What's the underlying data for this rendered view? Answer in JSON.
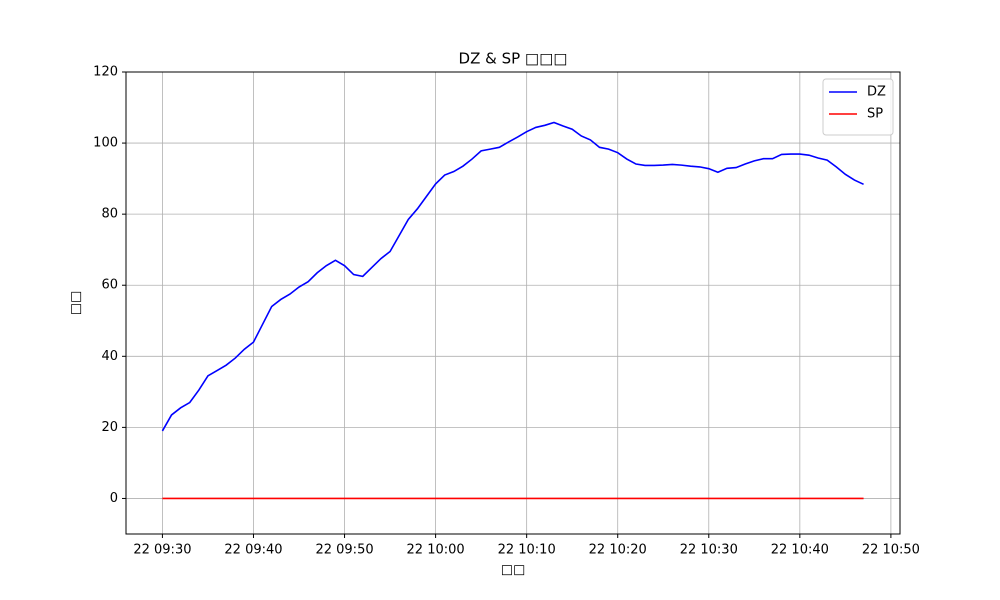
{
  "chart_data": {
    "type": "line",
    "title": "DZ & SP □□□",
    "xlabel": "□□",
    "ylabel": "□□",
    "x": [
      "22 09:30",
      "22 09:31",
      "22 09:32",
      "22 09:33",
      "22 09:34",
      "22 09:35",
      "22 09:36",
      "22 09:37",
      "22 09:38",
      "22 09:39",
      "22 09:40",
      "22 09:41",
      "22 09:42",
      "22 09:43",
      "22 09:44",
      "22 09:45",
      "22 09:46",
      "22 09:47",
      "22 09:48",
      "22 09:49",
      "22 09:50",
      "22 09:51",
      "22 09:52",
      "22 09:53",
      "22 09:54",
      "22 09:55",
      "22 09:56",
      "22 09:57",
      "22 09:58",
      "22 09:59",
      "22 10:00",
      "22 10:01",
      "22 10:02",
      "22 10:03",
      "22 10:04",
      "22 10:05",
      "22 10:06",
      "22 10:07",
      "22 10:08",
      "22 10:09",
      "22 10:10",
      "22 10:11",
      "22 10:12",
      "22 10:13",
      "22 10:14",
      "22 10:15",
      "22 10:16",
      "22 10:17",
      "22 10:18",
      "22 10:19",
      "22 10:20",
      "22 10:21",
      "22 10:22",
      "22 10:23",
      "22 10:24",
      "22 10:25",
      "22 10:26",
      "22 10:27",
      "22 10:28",
      "22 10:29",
      "22 10:30",
      "22 10:31",
      "22 10:32",
      "22 10:33",
      "22 10:34",
      "22 10:35",
      "22 10:36",
      "22 10:37",
      "22 10:38",
      "22 10:39",
      "22 10:40",
      "22 10:41",
      "22 10:42",
      "22 10:43",
      "22 10:44",
      "22 10:45",
      "22 10:46",
      "22 10:47"
    ],
    "series": [
      {
        "name": "DZ",
        "color": "#0000ff",
        "values": [
          19,
          23.5,
          25.5,
          27,
          30.5,
          34.5,
          36,
          37.5,
          39.5,
          42,
          44,
          49,
          54,
          56,
          57.5,
          59.5,
          61,
          63.5,
          65.5,
          67,
          65.5,
          63,
          62.5,
          65,
          67.5,
          69.5,
          74,
          78.5,
          81.5,
          85,
          88.5,
          91,
          92,
          93.5,
          95.5,
          97.8,
          98.3,
          98.8,
          100.3,
          101.7,
          103.2,
          104.4,
          105,
          105.8,
          104.8,
          103.9,
          102,
          100.9,
          98.8,
          98.3,
          97.3,
          95.5,
          94.1,
          93.7,
          93.7,
          93.8,
          94,
          93.8,
          93.5,
          93.3,
          92.8,
          91.8,
          92.9,
          93.1,
          94.1,
          95,
          95.6,
          95.6,
          96.8,
          96.9,
          96.9,
          96.6,
          95.8,
          95.2,
          93.3,
          91.2,
          89.6,
          88.4
        ]
      },
      {
        "name": "SP",
        "color": "#ff0000",
        "values": [
          0,
          0,
          0,
          0,
          0,
          0,
          0,
          0,
          0,
          0,
          0,
          0,
          0,
          0,
          0,
          0,
          0,
          0,
          0,
          0,
          0,
          0,
          0,
          0,
          0,
          0,
          0,
          0,
          0,
          0,
          0,
          0,
          0,
          0,
          0,
          0,
          0,
          0,
          0,
          0,
          0,
          0,
          0,
          0,
          0,
          0,
          0,
          0,
          0,
          0,
          0,
          0,
          0,
          0,
          0,
          0,
          0,
          0,
          0,
          0,
          0,
          0,
          0,
          0,
          0,
          0,
          0,
          0,
          0,
          0,
          0,
          0,
          0,
          0,
          0,
          0,
          0,
          0
        ]
      }
    ],
    "xlim": [
      "22 09:26",
      "22 10:51"
    ],
    "xticks": [
      "22 09:30",
      "22 09:40",
      "22 09:50",
      "22 10:00",
      "22 10:10",
      "22 10:20",
      "22 10:30",
      "22 10:40",
      "22 10:50"
    ],
    "ylim": [
      -10,
      120
    ],
    "yticks": [
      0,
      20,
      40,
      60,
      80,
      100,
      120
    ],
    "grid": true,
    "legend": "upper right"
  }
}
